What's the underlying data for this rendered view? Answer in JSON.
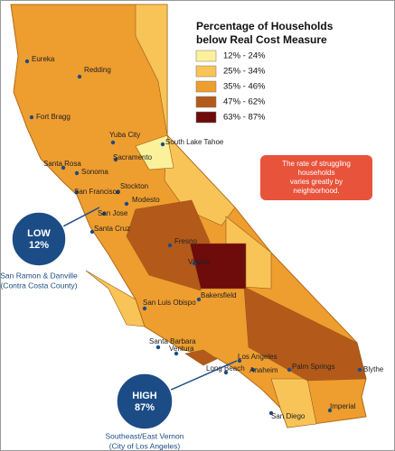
{
  "legend": {
    "title_lines": [
      "Percentage of Households",
      "below Real Cost Measure"
    ],
    "items": [
      {
        "label": "12% - 24%",
        "color": "#fbf19b"
      },
      {
        "label": "25% - 34%",
        "color": "#f8c457"
      },
      {
        "label": "35% - 46%",
        "color": "#ee9d2f"
      },
      {
        "label": "47% - 62%",
        "color": "#b35a1a"
      },
      {
        "label": "63% - 87%",
        "color": "#6e0b0b"
      }
    ]
  },
  "note": {
    "lines": [
      "The rate of struggling",
      "households",
      "varies greatly by",
      "neighborhood."
    ]
  },
  "callouts": [
    {
      "badge": [
        "LOW",
        "12%"
      ],
      "caption": [
        "San Ramon & Danville",
        "(Contra Costa County)"
      ]
    },
    {
      "badge": [
        "HIGH",
        "87%"
      ],
      "caption": [
        "Southeast/East Vernon",
        "(City of Los Angeles)"
      ]
    }
  ],
  "cities": [
    "Eureka",
    "Redding",
    "Fort Bragg",
    "Yuba City",
    "South Lake Tahoe",
    "Santa Rosa",
    "Sacramento",
    "Sonoma",
    "Stockton",
    "San Francisco",
    "Modesto",
    "San Jose",
    "Santa Cruz",
    "Fresno",
    "Visalia",
    "Bakersfield",
    "San Luis Obispo",
    "Santa Barbara",
    "Ventura",
    "Los Angeles",
    "Long Beach",
    "Anaheim",
    "Palm Springs",
    "Blythe",
    "Imperial",
    "San Diego"
  ]
}
